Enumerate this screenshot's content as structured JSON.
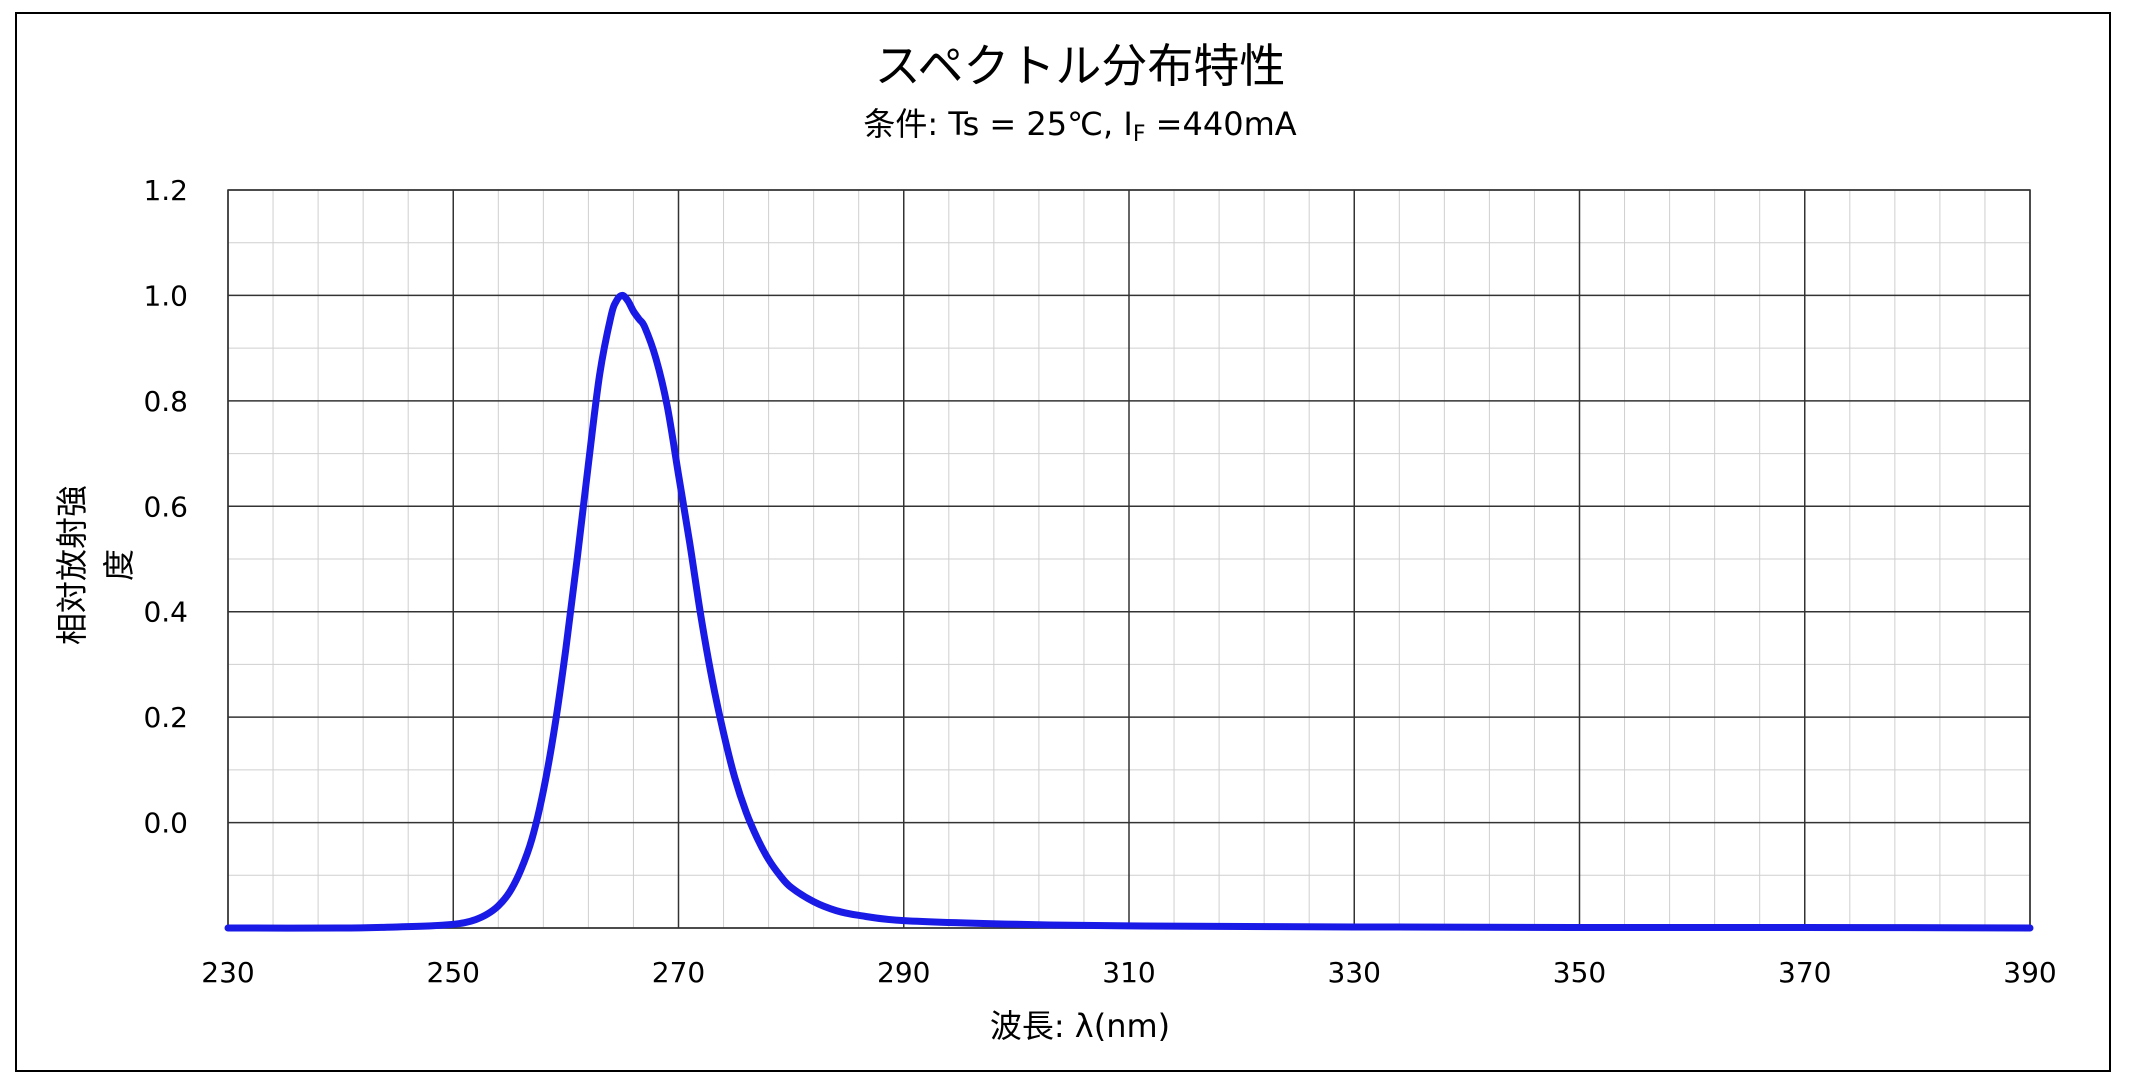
{
  "chart_data": {
    "type": "line",
    "title": "スペクトル分布特性",
    "subtitle": "条件: Ts = 25℃, I",
    "subtitle_sub": "F",
    "subtitle_tail": " =440mA",
    "xlabel": "波長: λ(nm)",
    "ylabel_line1": "相対放射強",
    "ylabel_line2": "度",
    "xlim": [
      230,
      390
    ],
    "ylim": [
      -0.2,
      1.2
    ],
    "x_ticks": [
      "230",
      "250",
      "270",
      "290",
      "310",
      "330",
      "350",
      "370",
      "390"
    ],
    "y_ticks": [
      "1.2",
      "1.0",
      "0.8",
      "0.6",
      "0.4",
      "0.2",
      "0.0"
    ],
    "grid": true,
    "legend": "none",
    "series": [
      {
        "color": "#1a1ae6",
        "x": [
          230,
          240,
          245,
          248,
          250,
          251,
          252,
          253,
          254,
          255,
          256,
          257,
          258,
          259,
          260,
          261,
          262,
          263,
          264,
          264.5,
          265,
          265.5,
          266,
          266.5,
          267,
          268,
          269,
          270,
          271,
          272,
          273,
          274,
          275,
          276,
          277,
          278,
          279,
          280,
          282,
          284,
          286,
          290,
          300,
          310,
          330,
          350,
          370,
          390
        ],
        "y": [
          -0.2,
          -0.2,
          -0.198,
          -0.196,
          -0.193,
          -0.19,
          -0.184,
          -0.174,
          -0.158,
          -0.132,
          -0.09,
          -0.03,
          0.06,
          0.18,
          0.33,
          0.5,
          0.68,
          0.85,
          0.96,
          0.99,
          1.0,
          0.99,
          0.97,
          0.955,
          0.94,
          0.88,
          0.79,
          0.66,
          0.53,
          0.39,
          0.27,
          0.17,
          0.085,
          0.02,
          -0.03,
          -0.07,
          -0.1,
          -0.123,
          -0.15,
          -0.167,
          -0.176,
          -0.186,
          -0.193,
          -0.196,
          -0.198,
          -0.199,
          -0.199,
          -0.2
        ]
      }
    ]
  }
}
